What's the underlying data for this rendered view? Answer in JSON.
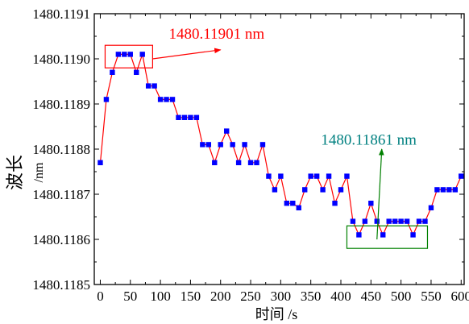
{
  "chart_data": {
    "type": "line",
    "xlabel": "时间 /s",
    "ylabel_main": "波长",
    "ylabel_unit": "/nm",
    "xlim": [
      -10,
      605
    ],
    "ylim": [
      1480.1185,
      1480.1191
    ],
    "x_ticks": [
      0,
      50,
      100,
      150,
      200,
      250,
      300,
      350,
      400,
      450,
      500,
      550,
      600
    ],
    "x_tick_labels": [
      "0",
      "50",
      "100",
      "150",
      "200",
      "250",
      "300",
      "350",
      "400",
      "450",
      "500",
      "550",
      "600"
    ],
    "y_ticks": [
      1480.1185,
      1480.1186,
      1480.1187,
      1480.1188,
      1480.1189,
      1480.119,
      1480.1191
    ],
    "y_tick_labels": [
      "1480.1185",
      "1480.1186",
      "1480.1187",
      "1480.1188",
      "1480.1189",
      "1480.1190",
      "1480.1191"
    ],
    "line_color": "#ff0000",
    "marker_color": "#0000ff",
    "series": [
      {
        "x": [
          0,
          10,
          20,
          30,
          40,
          50,
          60,
          70,
          80,
          90,
          100,
          110,
          120,
          130,
          140,
          150,
          160,
          170,
          180,
          190,
          200,
          210,
          220,
          230,
          240,
          250,
          260,
          270,
          280,
          290,
          300,
          310,
          320,
          330,
          340,
          350,
          360,
          370,
          380,
          390,
          400,
          410,
          420,
          430,
          440,
          450,
          460,
          470,
          480,
          490,
          500,
          510,
          520,
          530,
          540,
          550,
          560,
          570,
          580,
          590,
          600
        ],
        "y": [
          1480.11877,
          1480.11891,
          1480.11897,
          1480.11901,
          1480.11901,
          1480.11901,
          1480.11897,
          1480.11901,
          1480.11894,
          1480.11894,
          1480.11891,
          1480.11891,
          1480.11891,
          1480.11887,
          1480.11887,
          1480.11887,
          1480.11887,
          1480.11881,
          1480.11881,
          1480.11877,
          1480.11881,
          1480.11884,
          1480.11881,
          1480.11877,
          1480.11881,
          1480.11877,
          1480.11877,
          1480.11881,
          1480.11874,
          1480.11871,
          1480.11874,
          1480.11868,
          1480.11868,
          1480.11867,
          1480.11871,
          1480.11874,
          1480.11874,
          1480.11871,
          1480.11874,
          1480.11868,
          1480.11871,
          1480.11874,
          1480.11864,
          1480.11861,
          1480.11864,
          1480.11868,
          1480.11864,
          1480.11861,
          1480.11864,
          1480.11864,
          1480.11864,
          1480.11864,
          1480.11861,
          1480.11864,
          1480.11864,
          1480.11867,
          1480.11871,
          1480.11871,
          1480.11871,
          1480.11871,
          1480.11874
        ]
      }
    ],
    "annotations": [
      {
        "text": "1480.11901 nm",
        "color": "#ff0000",
        "box": {
          "x0": 8,
          "x1": 87,
          "y0": 1480.11898,
          "y1": 1480.11903
        },
        "label_at": {
          "x": 114,
          "y": 1480.119045
        },
        "arrow_from": {
          "x": 87,
          "y": 1480.119
        },
        "arrow_to": {
          "x": 200,
          "y": 1480.11902
        }
      },
      {
        "text": "1480.11861 nm",
        "color": "#008080",
        "box": {
          "x0": 410,
          "x1": 544,
          "y0": 1480.11858,
          "y1": 1480.11863
        },
        "label_at": {
          "x": 367,
          "y": 1480.11881
        },
        "arrow_from": {
          "x": 460,
          "y": 1480.1186
        },
        "arrow_to": {
          "x": 468,
          "y": 1480.1188
        },
        "box_color": "#008000",
        "arrow_color": "#008000"
      }
    ]
  }
}
